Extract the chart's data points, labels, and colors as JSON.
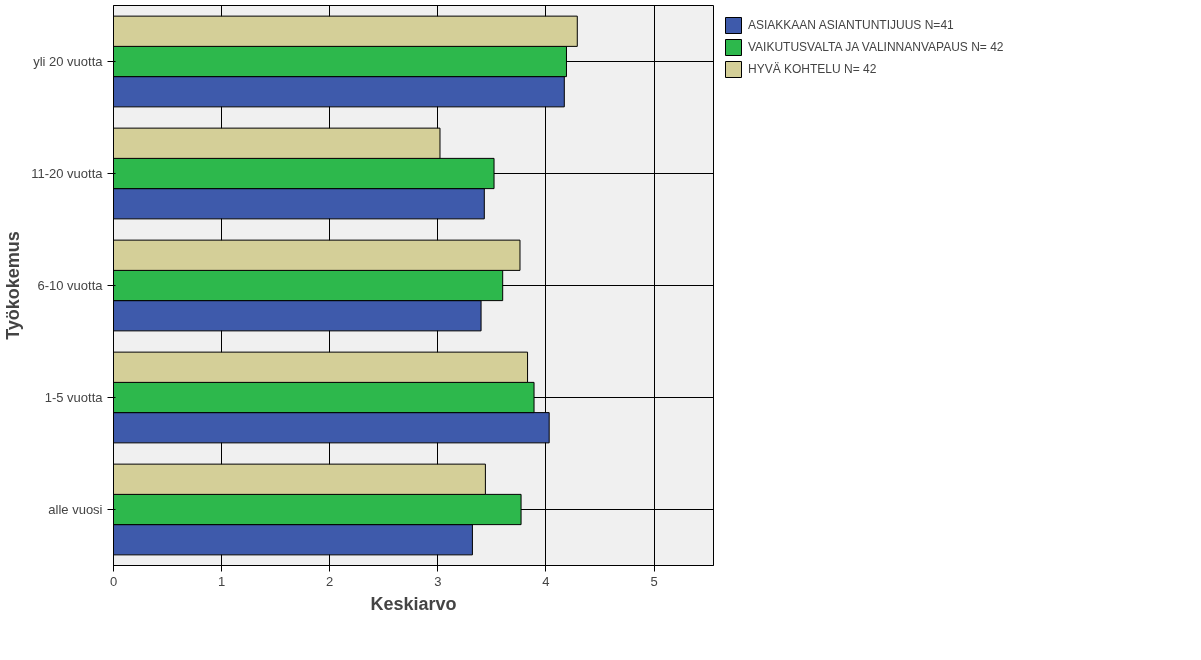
{
  "chart_data": {
    "type": "bar",
    "orientation": "horizontal",
    "xlabel": "Keskiarvo",
    "ylabel": "Työkokemus",
    "categories": [
      "yli 20 vuotta",
      "11-20 vuotta",
      "6-10 vuotta",
      "1-5 vuotta",
      "alle vuosi"
    ],
    "series": [
      {
        "name": "ASIAKKAAN ASIANTUNTIJUUS N=41",
        "color": "#3e5aab",
        "values": [
          4.17,
          3.43,
          3.4,
          4.03,
          3.32
        ]
      },
      {
        "name": "VAIKUTUSVALTA JA VALINNANVAPAUS N= 42",
        "color": "#2db84c",
        "values": [
          4.19,
          3.52,
          3.6,
          3.89,
          3.77
        ]
      },
      {
        "name": "HYVÄ KOHTELU N= 42",
        "color": "#d4cf98",
        "values": [
          4.29,
          3.02,
          3.76,
          3.83,
          3.44
        ]
      }
    ],
    "xlim": [
      0,
      5.55
    ],
    "xticks": [
      0,
      1,
      2,
      3,
      4,
      5
    ],
    "grid": true,
    "legend": "top right"
  }
}
